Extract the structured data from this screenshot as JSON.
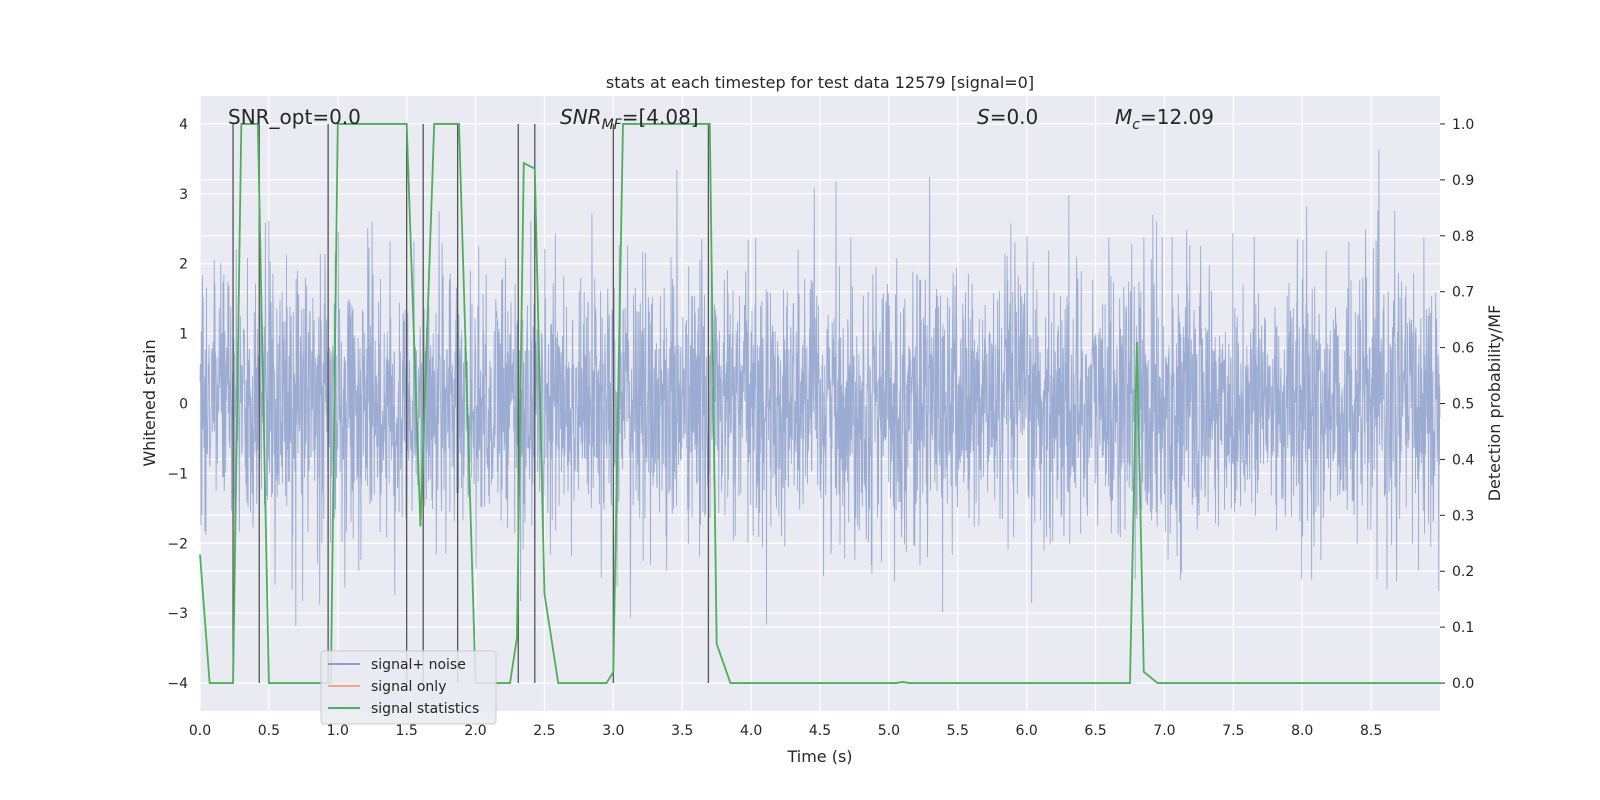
{
  "chart_data": {
    "type": "line",
    "title": "stats at each timestep for test data 12579 [signal=0]",
    "xlabel": "Time (s)",
    "ylabel": "Whitened strain",
    "y2label": "Detection probability/MF",
    "xlim": [
      0,
      9.0
    ],
    "ylim": [
      -4.4,
      4.4
    ],
    "y2lim": [
      -0.05,
      1.05
    ],
    "xticks": [
      "0.0",
      "0.5",
      "1.0",
      "1.5",
      "2.0",
      "2.5",
      "3.0",
      "3.5",
      "4.0",
      "4.5",
      "5.0",
      "5.5",
      "6.0",
      "6.5",
      "7.0",
      "7.5",
      "8.0",
      "8.5"
    ],
    "yticks": [
      "4",
      "3",
      "2",
      "1",
      "0",
      "−1",
      "−2",
      "−3",
      "−4"
    ],
    "y2ticks": [
      "1.0",
      "0.9",
      "0.8",
      "0.7",
      "0.6",
      "0.5",
      "0.4",
      "0.3",
      "0.2",
      "0.1",
      "0.0"
    ],
    "grid": true,
    "legend_position": "lower-left",
    "annotations": {
      "snr_opt": "SNR_opt=0.0",
      "snr_mf_main": "SNR",
      "snr_mf_sub": "MF",
      "snr_mf_val": "=[4.08]",
      "s_var": "S",
      "s_val": "=0.0",
      "mc_main": "M",
      "mc_sub": "c",
      "mc_val": "=12.09"
    },
    "series": [
      {
        "name": "signal+ noise",
        "color": "#8da0cb",
        "axis": "left",
        "description_envelope": {
          "typical_range": [
            -1.6,
            1.6
          ],
          "peak_range": [
            -3.9,
            4.0
          ]
        }
      },
      {
        "name": "signal only",
        "color": "#f4a582",
        "axis": "left",
        "x": [],
        "y": []
      },
      {
        "name": "signal statistics",
        "color": "#4daf5a",
        "axis": "right",
        "x": [
          0.0,
          0.07,
          0.1,
          0.24,
          0.3,
          0.42,
          0.5,
          0.95,
          1.0,
          1.05,
          1.5,
          1.6,
          1.7,
          1.75,
          1.8,
          1.88,
          2.0,
          2.05,
          2.25,
          2.3,
          2.35,
          2.43,
          2.5,
          2.6,
          2.95,
          3.0,
          3.07,
          3.1,
          3.65,
          3.7,
          3.75,
          3.85,
          3.98,
          4.1,
          5.05,
          5.1,
          5.15,
          6.75,
          6.8,
          6.85,
          6.95,
          9.0
        ],
        "y": [
          0.23,
          0.0,
          0.0,
          0.0,
          1.0,
          1.0,
          0.0,
          0.0,
          1.0,
          1.0,
          1.0,
          0.28,
          1.0,
          1.0,
          1.0,
          1.0,
          0.0,
          0.0,
          0.0,
          0.08,
          0.93,
          0.92,
          0.16,
          0.0,
          0.0,
          0.02,
          1.0,
          1.0,
          1.0,
          1.0,
          0.07,
          0.0,
          0.0,
          0.0,
          0.0,
          0.002,
          0.0,
          0.0,
          0.61,
          0.02,
          0.0,
          0.0
        ]
      }
    ],
    "vertical_lines_x": [
      0.24,
      0.43,
      0.93,
      1.5,
      1.62,
      1.87,
      2.31,
      2.43,
      3.0,
      3.69
    ]
  },
  "colors": {
    "plot_bg": "#eaeaf2",
    "grid": "#ffffff",
    "noise": "#8da0cb",
    "signal_only": "#f4a582",
    "stats": "#4daf5a",
    "vline": "#555555"
  }
}
